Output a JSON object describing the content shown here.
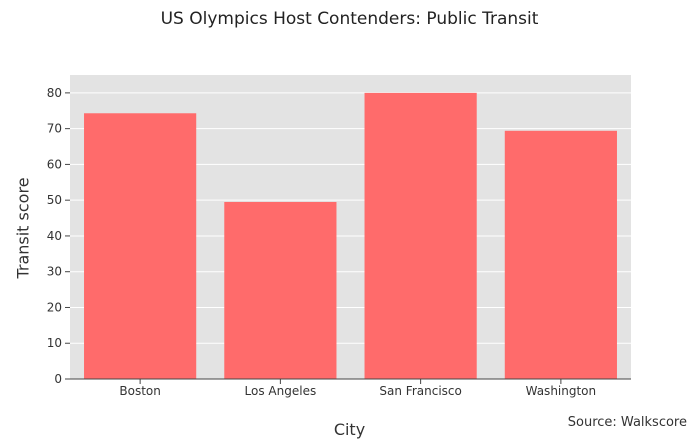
{
  "chart_data": {
    "type": "bar",
    "title": "US Olympics Host Contenders: Public Transit",
    "xlabel": "City",
    "ylabel": "Transit score",
    "categories": [
      "Boston",
      "Los Angeles",
      "San Francisco",
      "Washington"
    ],
    "values": [
      74.3,
      49.5,
      80.0,
      69.4
    ],
    "ylim": [
      0,
      85
    ],
    "yticks": [
      0,
      10,
      20,
      30,
      40,
      50,
      60,
      70,
      80
    ],
    "grid": true,
    "bar_color": "#ff6b6b",
    "plot_background": "#e3e3e3",
    "annotation": "Source: Walkscore"
  }
}
